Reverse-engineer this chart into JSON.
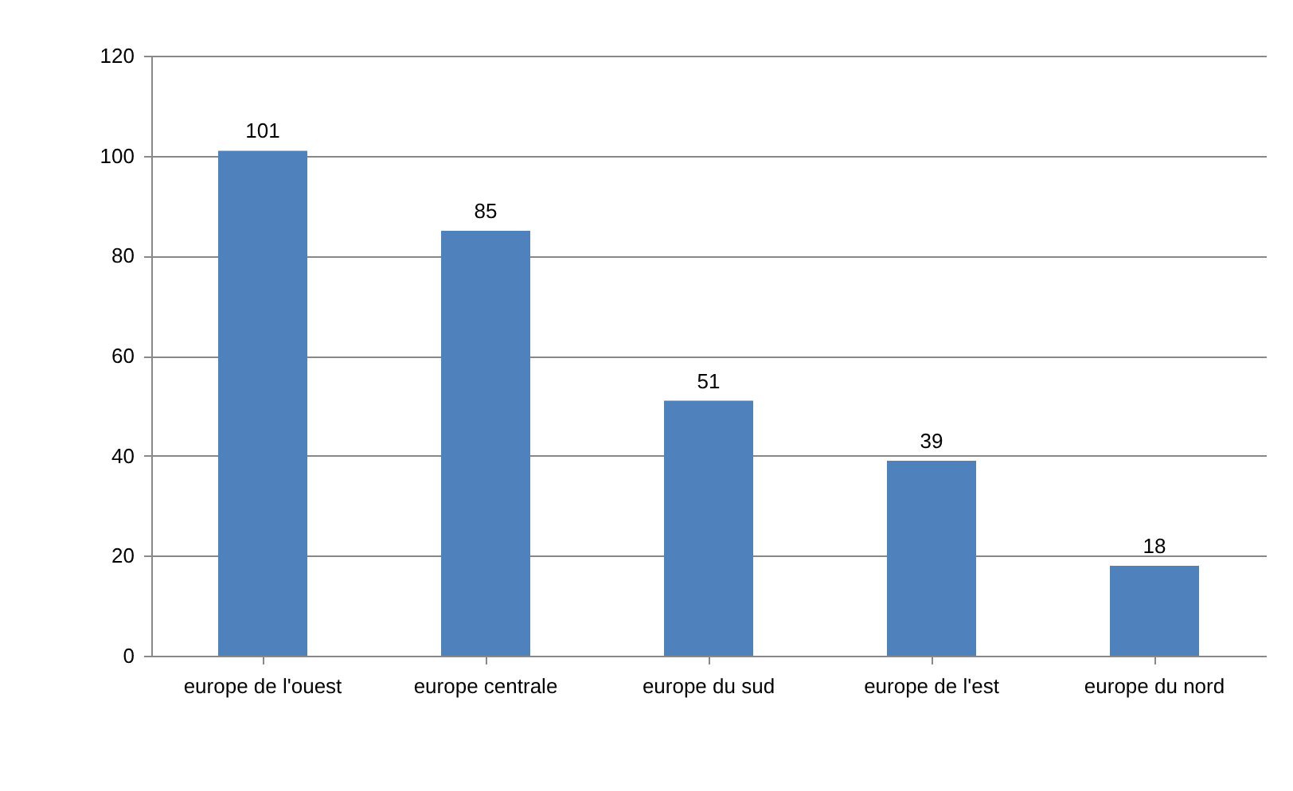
{
  "chart_data": {
    "type": "bar",
    "categories": [
      "europe  de l'ouest",
      "europe centrale",
      "europe du sud",
      "europe de l'est",
      "europe du nord"
    ],
    "values": [
      101,
      85,
      51,
      39,
      18
    ],
    "color": "#4f81bd",
    "ylim": [
      0,
      120
    ],
    "yticks": [
      0,
      20,
      40,
      60,
      80,
      100,
      120
    ],
    "grid": "y",
    "data_labels": true
  }
}
